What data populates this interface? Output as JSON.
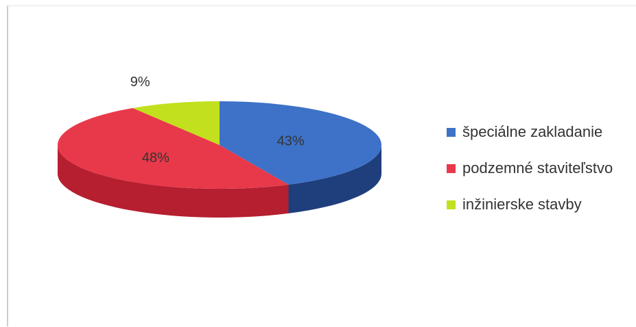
{
  "chart_data": {
    "type": "pie",
    "style": "3d",
    "slices": [
      {
        "label": "špeciálne zakladanie",
        "value": 43,
        "value_label": "43%",
        "color": "#3e72c8",
        "side_color": "#1f3e7c"
      },
      {
        "label": "podzemné staviteľstvo",
        "value": 48,
        "value_label": "48%",
        "color": "#e8394a",
        "side_color": "#b51f30"
      },
      {
        "label": "inžinierske stavby",
        "value": 9,
        "value_label": "9%",
        "color": "#c2e01e",
        "side_color": "#8fa514"
      }
    ],
    "legend_position": "right"
  }
}
